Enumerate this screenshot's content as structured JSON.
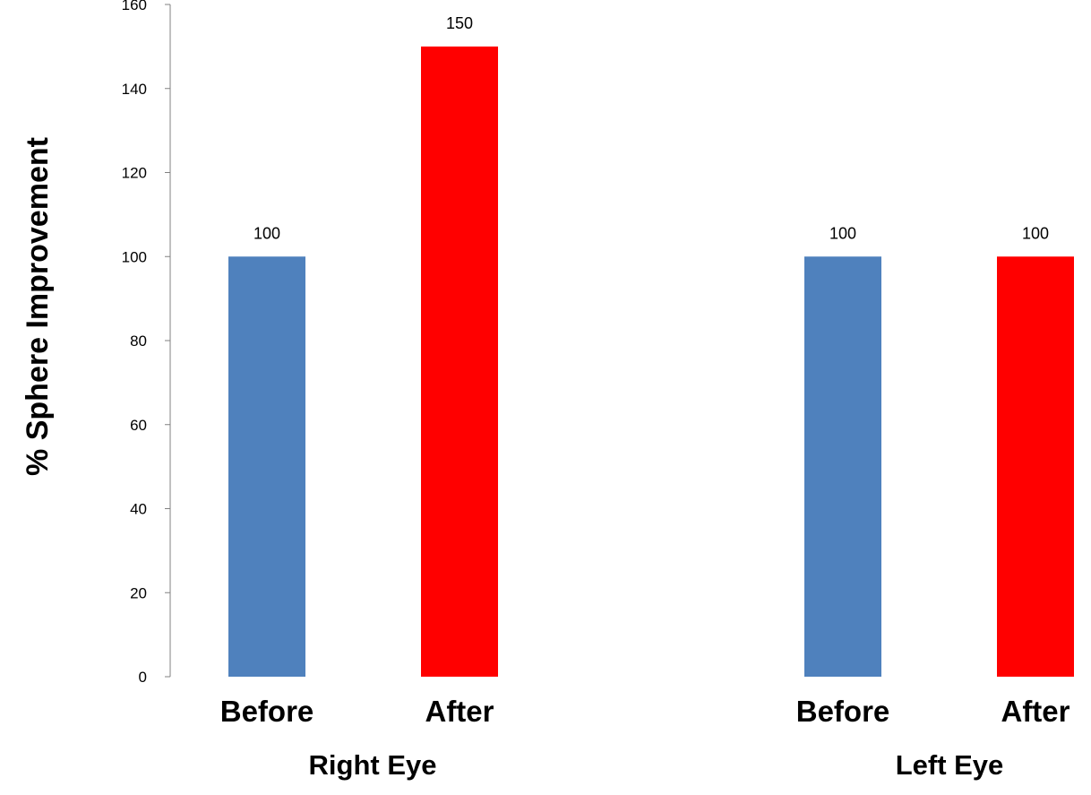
{
  "chart_data": {
    "type": "bar",
    "title": "",
    "ylabel": "% Sphere Improvement",
    "ylim": [
      0,
      160
    ],
    "yticks": [
      0,
      20,
      40,
      60,
      80,
      100,
      120,
      140,
      160
    ],
    "grid": false,
    "legend": "none",
    "groups": [
      {
        "label": "Right Eye",
        "bars": [
          {
            "category": "Before",
            "value": 100,
            "color": "#4f81bd"
          },
          {
            "category": "After",
            "value": 150,
            "color": "#ff0000"
          }
        ]
      },
      {
        "label": "Left Eye",
        "bars": [
          {
            "category": "Before",
            "value": 100,
            "color": "#4f81bd"
          },
          {
            "category": "After",
            "value": 100,
            "color": "#ff0000"
          }
        ]
      }
    ]
  }
}
